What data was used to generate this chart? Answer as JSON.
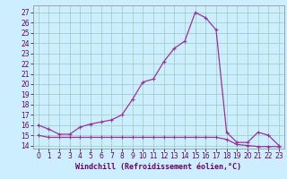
{
  "xlabel": "Windchill (Refroidissement éolien,°C)",
  "bg_color": "#cceeff",
  "line_color": "#993399",
  "grid_color": "#99ccbb",
  "x_ticks": [
    0,
    1,
    2,
    3,
    4,
    5,
    6,
    7,
    8,
    9,
    10,
    11,
    12,
    13,
    14,
    15,
    16,
    17,
    18,
    19,
    20,
    21,
    22,
    23
  ],
  "y_ticks": [
    14,
    15,
    16,
    17,
    18,
    19,
    20,
    21,
    22,
    23,
    24,
    25,
    26,
    27
  ],
  "ylim": [
    13.7,
    27.7
  ],
  "xlim": [
    -0.5,
    23.5
  ],
  "upper_x": [
    0,
    1,
    2,
    3,
    4,
    5,
    6,
    7,
    8,
    9,
    10,
    11,
    12,
    13,
    14,
    15,
    16,
    17,
    18,
    19,
    20,
    21,
    22,
    23
  ],
  "upper_y": [
    16.0,
    15.6,
    15.1,
    15.1,
    15.8,
    16.1,
    16.3,
    16.5,
    17.0,
    18.5,
    20.2,
    20.5,
    22.2,
    23.5,
    24.2,
    27.0,
    26.5,
    25.3,
    15.3,
    14.3,
    14.3,
    15.3,
    15.0,
    14.0
  ],
  "lower_x": [
    0,
    1,
    2,
    3,
    4,
    5,
    6,
    7,
    8,
    9,
    10,
    11,
    12,
    13,
    14,
    15,
    16,
    17,
    18,
    19,
    20,
    21,
    22,
    23
  ],
  "lower_y": [
    15.0,
    14.8,
    14.8,
    14.8,
    14.8,
    14.8,
    14.8,
    14.8,
    14.8,
    14.8,
    14.8,
    14.8,
    14.8,
    14.8,
    14.8,
    14.8,
    14.8,
    14.8,
    14.6,
    14.1,
    14.0,
    13.9,
    13.9,
    13.9
  ],
  "tick_fontsize": 5.5,
  "xlabel_fontsize": 6.0
}
